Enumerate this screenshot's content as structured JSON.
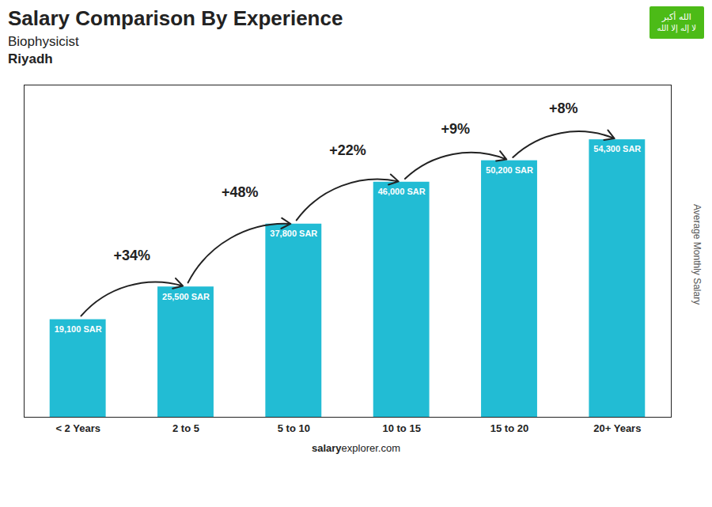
{
  "chart_data": {
    "type": "bar",
    "title": "Salary Comparison By Experience",
    "subtitle": [
      "Biophysicist",
      "Riyadh"
    ],
    "ylabel": "Average Monthly Salary",
    "caption": [
      "salary",
      "explorer.com"
    ],
    "categories": [
      "< 2 Years",
      "2 to 5",
      "5 to 10",
      "10 to 15",
      "15 to 20",
      "20+ Years"
    ],
    "values": [
      19100,
      25500,
      37800,
      46000,
      50200,
      54300
    ],
    "value_labels": [
      "19,100 SAR",
      "25,500 SAR",
      "37,800 SAR",
      "46,000 SAR",
      "50,200 SAR",
      "54,300 SAR"
    ],
    "data_labels": true,
    "changes": [
      34,
      48,
      22,
      9,
      8
    ],
    "change_labels": [
      "+34%",
      "+48%",
      "+22%",
      "+9%",
      "+8%"
    ],
    "annotations": [
      "الله أكبر",
      "لا إله إلا الله"
    ],
    "color": "#22bcd4",
    "ylim": [
      0,
      65000
    ],
    "tick_labels": "x",
    "grid": false
  }
}
